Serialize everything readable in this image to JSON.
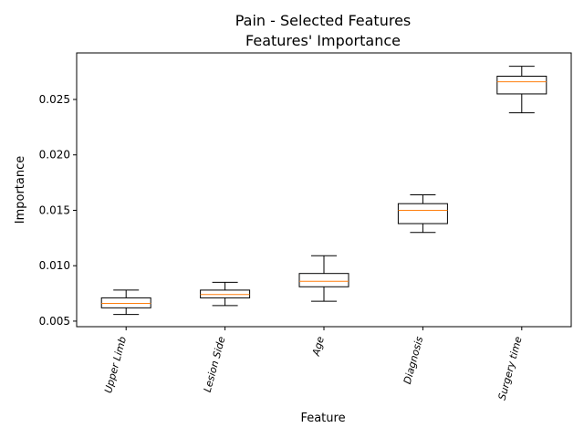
{
  "chart_data": {
    "type": "box",
    "title_line1": "Pain - Selected Features",
    "title_line2": "Features' Importance",
    "xlabel": "Feature",
    "ylabel": "Importance",
    "ylim": [
      0.0045,
      0.0292
    ],
    "yticks": [
      0.005,
      0.01,
      0.015,
      0.02,
      0.025
    ],
    "ytick_labels": [
      "0.005",
      "0.010",
      "0.015",
      "0.020",
      "0.025"
    ],
    "categories": [
      "Upper Limb",
      "Lesion Side",
      "Age",
      "Diagnosis",
      "Surgery time"
    ],
    "boxes": [
      {
        "whisker_low": 0.0056,
        "q1": 0.0062,
        "median": 0.0066,
        "q3": 0.0071,
        "whisker_high": 0.0078
      },
      {
        "whisker_low": 0.0064,
        "q1": 0.0071,
        "median": 0.0074,
        "q3": 0.0078,
        "whisker_high": 0.0085
      },
      {
        "whisker_low": 0.0068,
        "q1": 0.0081,
        "median": 0.0086,
        "q3": 0.0093,
        "whisker_high": 0.0109
      },
      {
        "whisker_low": 0.013,
        "q1": 0.0138,
        "median": 0.015,
        "q3": 0.0156,
        "whisker_high": 0.0164
      },
      {
        "whisker_low": 0.0238,
        "q1": 0.0255,
        "median": 0.0266,
        "q3": 0.0271,
        "whisker_high": 0.028
      }
    ],
    "colors": {
      "box": "#000000",
      "median": "#ff7f0e"
    },
    "grid": false
  }
}
